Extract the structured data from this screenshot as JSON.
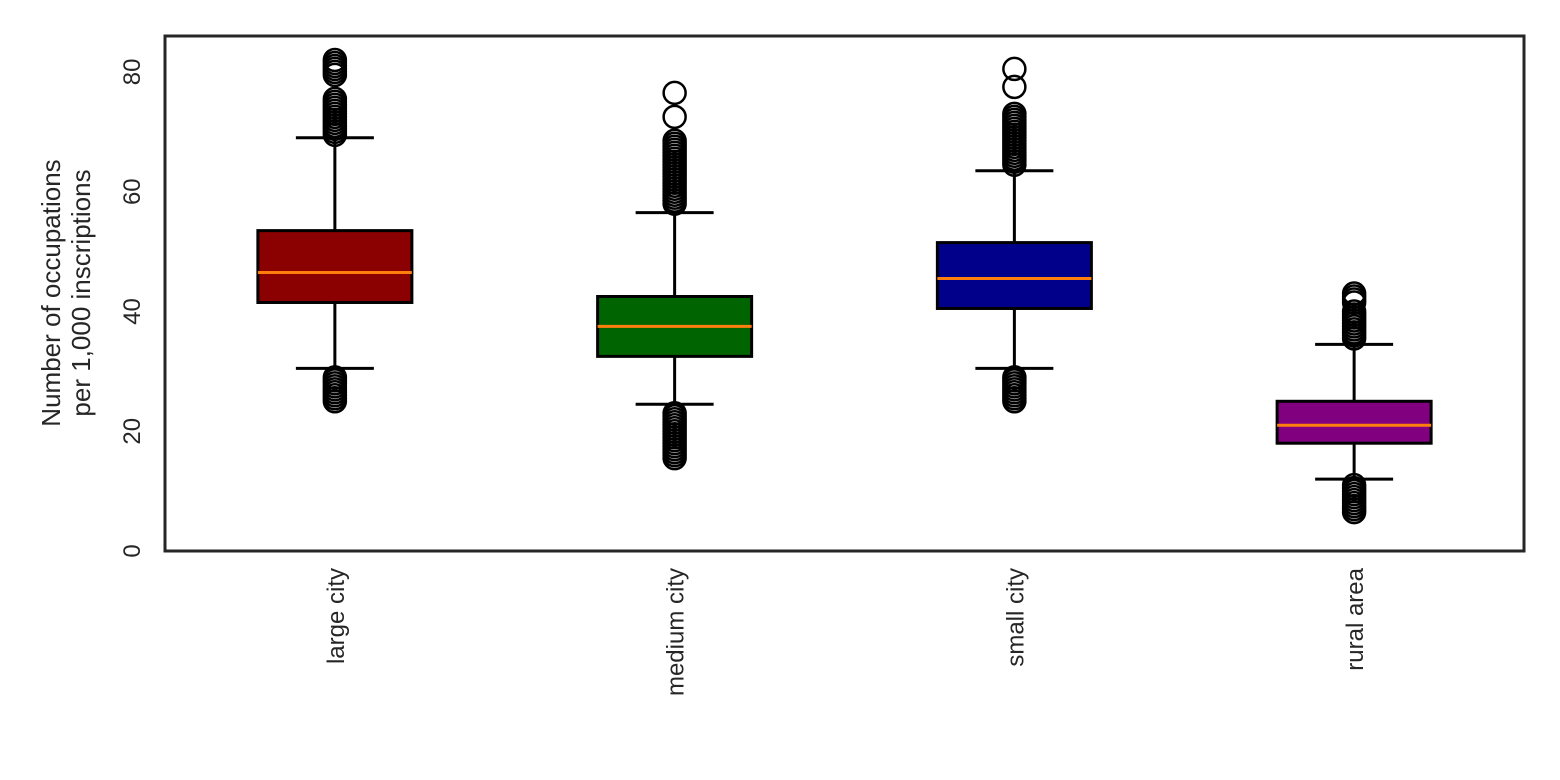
{
  "chart_data": {
    "type": "boxplot",
    "title": "",
    "xlabel": "",
    "ylabel_lines": [
      "Number of occupations",
      "per 1,000 inscriptions"
    ],
    "ylim": [
      0,
      86
    ],
    "yticks": [
      0,
      20,
      40,
      60,
      80
    ],
    "grid": false,
    "median_color": "#ff7f0e",
    "categories": [
      {
        "name": "large city",
        "color": "#8b0000",
        "whisker_low": 30.5,
        "q1": 41.5,
        "median": 46.5,
        "q3": 53.5,
        "whisker_high": 69.0,
        "outliers_low": [
          25.0,
          25.5,
          26.0,
          26.5,
          27.0,
          27.5,
          28.0,
          28.5,
          29.0
        ],
        "outliers_high": [
          69.5,
          70.0,
          70.5,
          71.0,
          71.5,
          72.0,
          72.5,
          73.0,
          73.5,
          74.0,
          74.5,
          75.0,
          75.5,
          79.5,
          80.0,
          80.5,
          81.0,
          81.5,
          82.0
        ]
      },
      {
        "name": "medium city",
        "color": "#006400",
        "whisker_low": 24.5,
        "q1": 32.5,
        "median": 37.5,
        "q3": 42.5,
        "whisker_high": 56.5,
        "outliers_low": [
          15.5,
          16.0,
          16.5,
          17.0,
          17.5,
          18.0,
          18.5,
          19.0,
          19.5,
          20.0,
          20.5,
          21.0,
          21.5,
          22.0,
          22.5,
          23.0
        ],
        "outliers_high": [
          58.0,
          58.5,
          59.0,
          59.5,
          60.0,
          60.5,
          61.0,
          61.5,
          62.0,
          62.5,
          63.0,
          63.5,
          64.0,
          64.5,
          65.0,
          65.5,
          66.0,
          66.5,
          67.0,
          67.5,
          68.0,
          68.5,
          72.5,
          76.5
        ]
      },
      {
        "name": "small city",
        "color": "#00008b",
        "whisker_low": 30.5,
        "q1": 40.5,
        "median": 45.5,
        "q3": 51.5,
        "whisker_high": 63.5,
        "outliers_low": [
          25.0,
          25.5,
          26.0,
          26.5,
          27.0,
          27.5,
          28.0,
          28.5,
          29.0
        ],
        "outliers_high": [
          64.5,
          65.0,
          65.5,
          66.0,
          66.5,
          67.0,
          67.5,
          68.0,
          68.5,
          69.0,
          69.5,
          70.0,
          70.5,
          71.0,
          71.5,
          72.0,
          72.5,
          73.0,
          77.5,
          80.5
        ]
      },
      {
        "name": "rural area",
        "color": "#800080",
        "whisker_low": 12.0,
        "q1": 18.0,
        "median": 21.0,
        "q3": 25.0,
        "whisker_high": 34.5,
        "outliers_low": [
          6.5,
          7.0,
          7.5,
          8.0,
          8.5,
          9.0,
          9.5,
          10.0,
          10.5,
          11.0
        ],
        "outliers_high": [
          35.5,
          36.0,
          36.5,
          37.0,
          37.5,
          38.0,
          38.5,
          39.0,
          39.5,
          40.0,
          41.5,
          42.0,
          42.5,
          43.0
        ]
      }
    ]
  }
}
